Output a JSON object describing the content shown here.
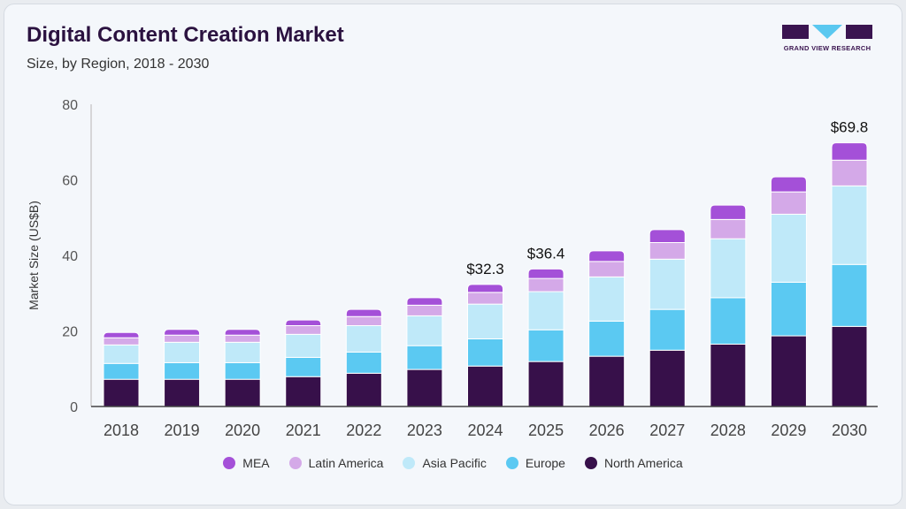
{
  "header": {
    "title": "Digital Content Creation Market",
    "subtitle": "Size, by Region, 2018 - 2030"
  },
  "logo": {
    "text": "GRAND VIEW RESEARCH",
    "colors": {
      "dark": "#3a1450",
      "accent": "#5ac8f0"
    }
  },
  "chart_data": {
    "type": "bar",
    "stacked": true,
    "title": "Digital Content Creation Market",
    "subtitle": "Size, by Region, 2018 - 2030",
    "xlabel": "",
    "ylabel": "Market Size (US$B)",
    "ylim": [
      0,
      80
    ],
    "yticks": [
      0,
      20,
      40,
      60,
      80
    ],
    "grid": false,
    "legend_position": "bottom",
    "categories": [
      "2018",
      "2019",
      "2020",
      "2021",
      "2022",
      "2023",
      "2024",
      "2025",
      "2026",
      "2027",
      "2028",
      "2029",
      "2030"
    ],
    "series": [
      {
        "name": "North America",
        "color": "#37104a",
        "values": [
          7.2,
          7.2,
          7.2,
          7.9,
          8.8,
          9.8,
          10.7,
          11.9,
          13.3,
          14.9,
          16.5,
          18.7,
          21.2
        ]
      },
      {
        "name": "Europe",
        "color": "#5bc9f2",
        "values": [
          4.2,
          4.4,
          4.4,
          5.1,
          5.6,
          6.3,
          7.2,
          8.4,
          9.3,
          10.8,
          12.3,
          14.2,
          16.4
        ]
      },
      {
        "name": "Asia Pacific",
        "color": "#bfe9f9",
        "values": [
          4.9,
          5.4,
          5.4,
          6.1,
          7.0,
          7.9,
          9.2,
          10.1,
          11.7,
          13.3,
          15.6,
          18.0,
          20.8
        ]
      },
      {
        "name": "Latin America",
        "color": "#d4a9e8",
        "values": [
          1.9,
          1.9,
          1.9,
          2.3,
          2.4,
          2.8,
          3.1,
          3.5,
          4.1,
          4.4,
          5.1,
          5.9,
          6.8
        ]
      },
      {
        "name": "MEA",
        "color": "#a450d8",
        "values": [
          1.4,
          1.5,
          1.5,
          1.5,
          1.9,
          2.0,
          2.1,
          2.5,
          2.8,
          3.4,
          3.8,
          4.0,
          4.6
        ]
      }
    ],
    "annotations": [
      {
        "category": "2024",
        "text": "$32.3"
      },
      {
        "category": "2025",
        "text": "$36.4"
      },
      {
        "category": "2030",
        "text": "$69.8"
      }
    ],
    "legend_order": [
      "MEA",
      "Latin America",
      "Asia Pacific",
      "Europe",
      "North America"
    ]
  }
}
